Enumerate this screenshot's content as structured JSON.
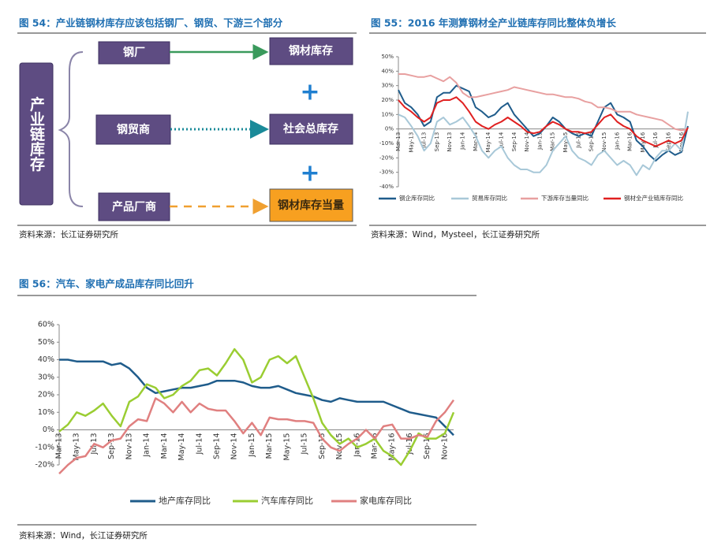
{
  "figures": [
    {
      "title": "图 54：产业链钢材库存应该包括钢厂、钢贸、下游三个部分",
      "source": "资料来源：长江证券研究所"
    },
    {
      "title": "图 55：2016 年测算钢材全产业链库存同比整体负增长",
      "source": "资料来源：Wind，Mysteel，长江证券研究所"
    },
    {
      "title": "图 56：汽车、家电产成品库存同比回升",
      "source": "资料来源：Wind，长江证券研究所"
    }
  ],
  "diagram": {
    "root": "产业链库存",
    "nodes": [
      "钢厂",
      "钢贸商",
      "产品厂商"
    ],
    "targets": [
      "钢材库存",
      "社会总库存",
      "钢材库存当量"
    ],
    "operators": [
      "+",
      "+"
    ]
  },
  "chart_data": [
    {
      "type": "line",
      "categories": [
        "Mar-13",
        null,
        "May-13",
        null,
        "Jul-13",
        null,
        "Sep-13",
        null,
        "Nov-13",
        null,
        "Jan-14",
        null,
        "Mar-14",
        null,
        "May-14",
        null,
        "Jul-14",
        null,
        "Sep-14",
        null,
        "Nov-14",
        null,
        "Jan-15",
        null,
        "Mar-15",
        null,
        "May-15",
        null,
        "Jul-15",
        null,
        "Sep-15",
        null,
        "Nov-15",
        null,
        "Jan-16",
        null,
        "Mar-16",
        null,
        "May-16",
        null,
        "Jul-16",
        null,
        "Sep-16",
        null,
        "Nov-16",
        null
      ],
      "ylim": [
        -40,
        50
      ],
      "yticks": [
        {
          "value": 50,
          "label": "50%"
        },
        {
          "value": 40,
          "label": "40%"
        },
        {
          "value": 30,
          "label": "30%"
        },
        {
          "value": 20,
          "label": "20%"
        },
        {
          "value": 10,
          "label": "10%"
        },
        {
          "value": 0,
          "label": "0%"
        },
        {
          "value": -10,
          "label": "-10%"
        },
        {
          "value": -20,
          "label": "-20%"
        },
        {
          "value": -30,
          "label": "-30%"
        },
        {
          "value": -40,
          "label": "-40%"
        }
      ],
      "grid": false,
      "series": [
        {
          "name": "钢企库存同比",
          "color": "#1f5c8b",
          "values": [
            27,
            18,
            15,
            10,
            2,
            5,
            22,
            25,
            25,
            30,
            28,
            26,
            15,
            12,
            8,
            10,
            15,
            18,
            10,
            5,
            0,
            -5,
            -3,
            2,
            8,
            5,
            0,
            -3,
            -5,
            -3,
            -5,
            5,
            15,
            18,
            10,
            8,
            5,
            -8,
            -12,
            -18,
            -22,
            -18,
            -15,
            -18,
            -16,
            2
          ]
        },
        {
          "name": "贸易库存同比",
          "color": "#a8c8d8",
          "values": [
            10,
            8,
            2,
            -5,
            -15,
            -10,
            5,
            8,
            3,
            5,
            8,
            2,
            -5,
            -15,
            -20,
            -15,
            -12,
            -20,
            -25,
            -28,
            -28,
            -30,
            -30,
            -25,
            -15,
            -10,
            -5,
            -15,
            -20,
            -22,
            -25,
            -18,
            -15,
            -20,
            -25,
            -22,
            -25,
            -32,
            -25,
            -28,
            -20,
            -15,
            -15,
            -10,
            -15,
            12
          ]
        },
        {
          "name": "下游库存当量同比",
          "color": "#e8a0a0",
          "values": [
            38,
            38,
            37,
            36,
            36,
            37,
            35,
            33,
            36,
            32,
            25,
            22,
            22,
            23,
            24,
            25,
            26,
            27,
            29,
            28,
            27,
            26,
            25,
            24,
            24,
            23,
            22,
            22,
            21,
            19,
            18,
            15,
            15,
            14,
            12,
            12,
            12,
            10,
            9,
            8,
            7,
            6,
            3,
            0,
            -1,
            0
          ]
        },
        {
          "name": "钢材全产业链库存同比",
          "color": "#e02020",
          "values": [
            20,
            15,
            12,
            8,
            5,
            8,
            18,
            20,
            20,
            22,
            18,
            12,
            5,
            2,
            0,
            3,
            5,
            8,
            5,
            2,
            -2,
            -3,
            -2,
            2,
            5,
            3,
            0,
            -2,
            -2,
            -3,
            -2,
            3,
            8,
            10,
            5,
            2,
            0,
            -5,
            -8,
            -10,
            -12,
            -10,
            -8,
            -10,
            -8,
            1
          ]
        }
      ]
    },
    {
      "type": "line",
      "categories": [
        "Mar-13",
        null,
        "May-13",
        null,
        "Jul-13",
        null,
        "Sep-13",
        null,
        "Nov-13",
        null,
        "Jan-14",
        null,
        "Mar-14",
        null,
        "May-14",
        null,
        "Jul-14",
        null,
        "Sep-14",
        null,
        "Nov-14",
        null,
        "Jan-15",
        null,
        "Mar-15",
        null,
        "May-15",
        null,
        "Jul-15",
        null,
        "Sep-15",
        null,
        "Nov-15",
        null,
        "Jan-16",
        null,
        "Mar-16",
        null,
        "May-16",
        null,
        "Jul-16",
        null,
        "Sep-16",
        null,
        "Nov-16",
        null
      ],
      "ylim": [
        -20,
        60
      ],
      "yticks": [
        {
          "value": 60,
          "label": "60%"
        },
        {
          "value": 50,
          "label": "50%"
        },
        {
          "value": 40,
          "label": "40%"
        },
        {
          "value": 30,
          "label": "30%"
        },
        {
          "value": 20,
          "label": "20%"
        },
        {
          "value": 10,
          "label": "10%"
        },
        {
          "value": 0,
          "label": "0%"
        },
        {
          "value": -10,
          "label": "-10%"
        },
        {
          "value": -20,
          "label": "-20%"
        }
      ],
      "grid": false,
      "series": [
        {
          "name": "地产库存同比",
          "color": "#1f5c8b",
          "values": [
            40,
            40,
            39,
            39,
            39,
            39,
            37,
            38,
            35,
            30,
            24,
            21,
            22,
            23,
            24,
            24,
            25,
            26,
            28,
            28,
            28,
            27,
            25,
            24,
            24,
            25,
            23,
            21,
            20,
            19,
            17,
            16,
            18,
            17,
            16,
            16,
            16,
            16,
            14,
            12,
            10,
            9,
            8,
            7,
            2,
            -3
          ]
        },
        {
          "name": "汽车库存同比",
          "color": "#9acd32",
          "values": [
            -1,
            3,
            10,
            8,
            11,
            15,
            8,
            2,
            16,
            19,
            26,
            24,
            18,
            20,
            25,
            28,
            34,
            35,
            31,
            38,
            46,
            40,
            27,
            30,
            40,
            42,
            38,
            42,
            30,
            18,
            4,
            -3,
            -8,
            -5,
            -10,
            -8,
            -5,
            -12,
            -15,
            -20,
            -12,
            -2,
            -5,
            -5,
            -2,
            10
          ]
        },
        {
          "name": "家电库存同比",
          "color": "#e08080",
          "values": [
            -25,
            -20,
            -16,
            -15,
            -8,
            -10,
            -6,
            -5,
            2,
            6,
            5,
            18,
            15,
            10,
            16,
            10,
            15,
            12,
            11,
            11,
            5,
            -2,
            4,
            -3,
            7,
            6,
            6,
            5,
            5,
            4,
            -5,
            -10,
            -12,
            -8,
            -5,
            0,
            -5,
            2,
            3,
            -5,
            -5,
            -3,
            -4,
            5,
            10,
            17
          ]
        }
      ]
    }
  ]
}
